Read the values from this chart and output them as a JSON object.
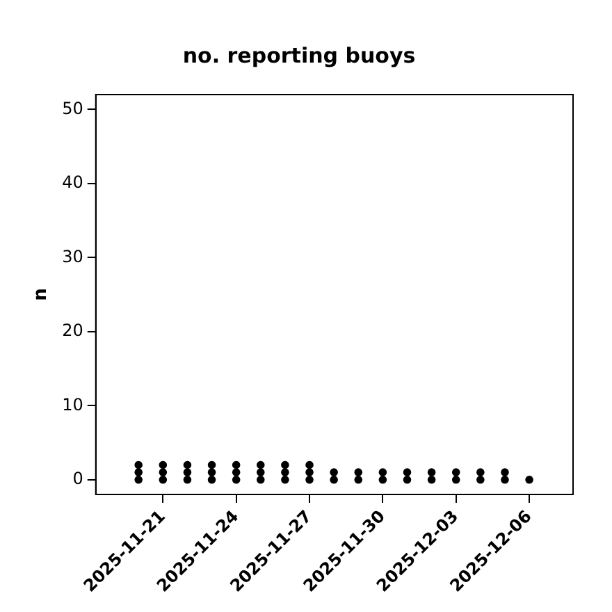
{
  "chart_data": {
    "type": "scatter",
    "title": "no. reporting buoys",
    "ylabel": "n",
    "series": [
      {
        "color": "#000000",
        "x": [
          "2025-11-20",
          "2025-11-20",
          "2025-11-20",
          "2025-11-21",
          "2025-11-21",
          "2025-11-21",
          "2025-11-22",
          "2025-11-22",
          "2025-11-22",
          "2025-11-23",
          "2025-11-23",
          "2025-11-23",
          "2025-11-24",
          "2025-11-24",
          "2025-11-24",
          "2025-11-25",
          "2025-11-25",
          "2025-11-25",
          "2025-11-26",
          "2025-11-26",
          "2025-11-26",
          "2025-11-27",
          "2025-11-27",
          "2025-11-27",
          "2025-11-28",
          "2025-11-28",
          "2025-11-29",
          "2025-11-29",
          "2025-11-30",
          "2025-11-30",
          "2025-12-01",
          "2025-12-01",
          "2025-12-02",
          "2025-12-02",
          "2025-12-03",
          "2025-12-03",
          "2025-12-04",
          "2025-12-04",
          "2025-12-05",
          "2025-12-05",
          "2025-12-06"
        ],
        "values": [
          0,
          1,
          2,
          0,
          1,
          2,
          0,
          1,
          2,
          0,
          1,
          2,
          0,
          1,
          2,
          0,
          1,
          2,
          0,
          1,
          2,
          0,
          1,
          2,
          0,
          1,
          0,
          1,
          0,
          1,
          0,
          1,
          0,
          1,
          0,
          1,
          0,
          1,
          0,
          1,
          0
        ]
      }
    ],
    "xlim": [
      "2025-11-18T06:00",
      "2025-12-07T19:00"
    ],
    "xticks": [
      "2025-11-21",
      "2025-11-24",
      "2025-11-27",
      "2025-11-30",
      "2025-12-03",
      "2025-12-06"
    ],
    "ylim": [
      -2,
      52
    ],
    "yticks": [
      0,
      10,
      20,
      30,
      40,
      50
    ],
    "marker": "circle",
    "grid": false,
    "legend": false
  }
}
